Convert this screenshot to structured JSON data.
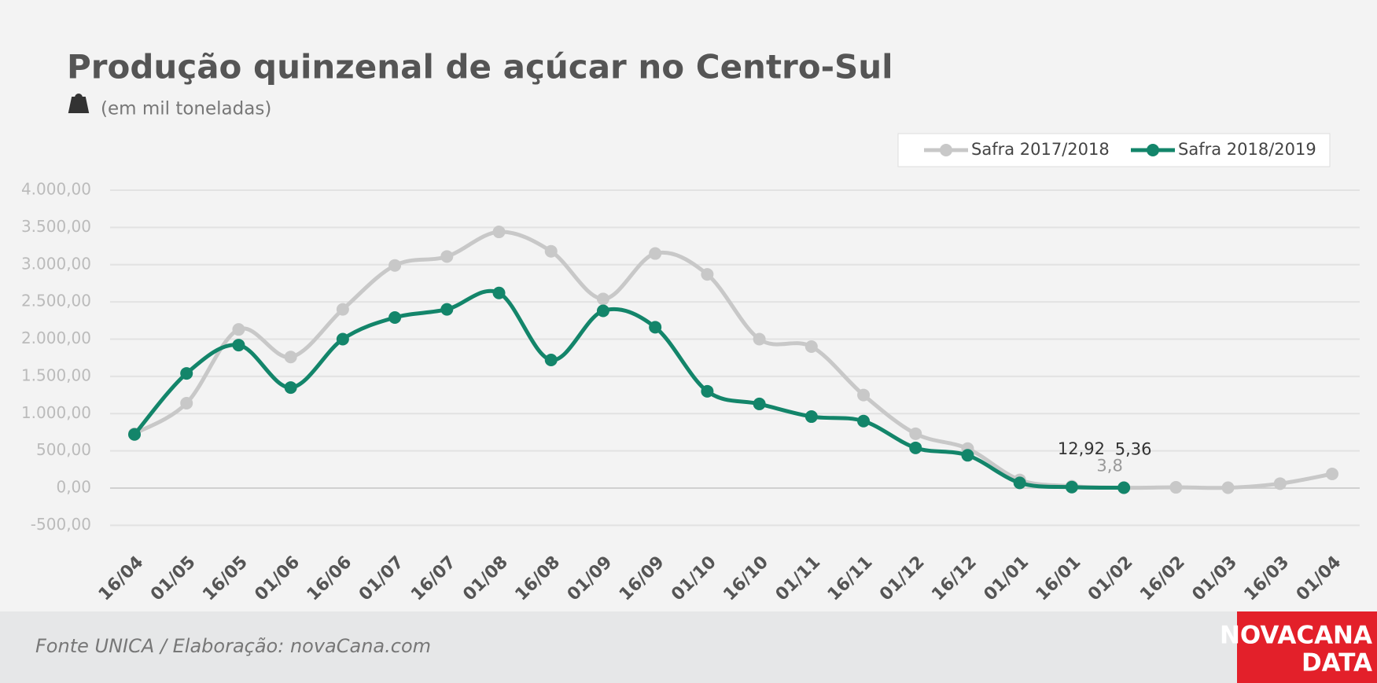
{
  "chart_data": {
    "type": "line",
    "title": "Produção quinzenal de açúcar no Centro-Sul",
    "subtitle": "(em mil toneladas)",
    "source": "Fonte UNICA / Elaboração: novaCana.com",
    "logo": [
      "NOVACANA",
      "DATA"
    ],
    "categories": [
      "16/04",
      "01/05",
      "16/05",
      "01/06",
      "16/06",
      "01/07",
      "16/07",
      "01/08",
      "16/08",
      "01/09",
      "16/09",
      "01/10",
      "16/10",
      "01/11",
      "16/11",
      "01/12",
      "16/12",
      "01/01",
      "16/01",
      "01/02",
      "16/02",
      "01/03",
      "16/03",
      "01/04"
    ],
    "series": [
      {
        "name": "Safra 2017/2018",
        "color": "#c8c8c8",
        "values": [
          730,
          1140,
          2130,
          1760,
          2400,
          2990,
          3110,
          3440,
          3180,
          2540,
          3150,
          2870,
          2000,
          1900,
          1250,
          730,
          530,
          110,
          25,
          3.8,
          10,
          5,
          60,
          190
        ],
        "value_labels": [
          null,
          null,
          null,
          null,
          null,
          null,
          null,
          null,
          null,
          null,
          null,
          null,
          null,
          null,
          null,
          null,
          null,
          null,
          null,
          "3,8",
          null,
          null,
          null,
          null
        ]
      },
      {
        "name": "Safra 2018/2019",
        "color": "#13856a",
        "values": [
          720,
          1540,
          1920,
          1350,
          2000,
          2290,
          2400,
          2620,
          1720,
          2380,
          2160,
          1300,
          1130,
          960,
          900,
          540,
          440,
          70,
          12.92,
          5.36,
          null,
          null,
          null,
          null
        ],
        "value_labels": [
          null,
          null,
          null,
          null,
          null,
          null,
          null,
          null,
          null,
          null,
          null,
          null,
          null,
          null,
          null,
          null,
          null,
          null,
          "12,92",
          "5,36",
          null,
          null,
          null,
          null
        ]
      }
    ],
    "ylim": [
      -500,
      4000
    ],
    "yticks": [
      {
        "value": -500,
        "label": "-500,00"
      },
      {
        "value": 0,
        "label": "0,00"
      },
      {
        "value": 500,
        "label": "500,00"
      },
      {
        "value": 1000,
        "label": "1.000,00"
      },
      {
        "value": 1500,
        "label": "1.500,00"
      },
      {
        "value": 2000,
        "label": "2.000,00"
      },
      {
        "value": 2500,
        "label": "2.500,00"
      },
      {
        "value": 3000,
        "label": "3.000,00"
      },
      {
        "value": 3500,
        "label": "3.500,00"
      },
      {
        "value": 4000,
        "label": "4.000,00"
      }
    ],
    "grid": true,
    "legend": "top-right"
  }
}
